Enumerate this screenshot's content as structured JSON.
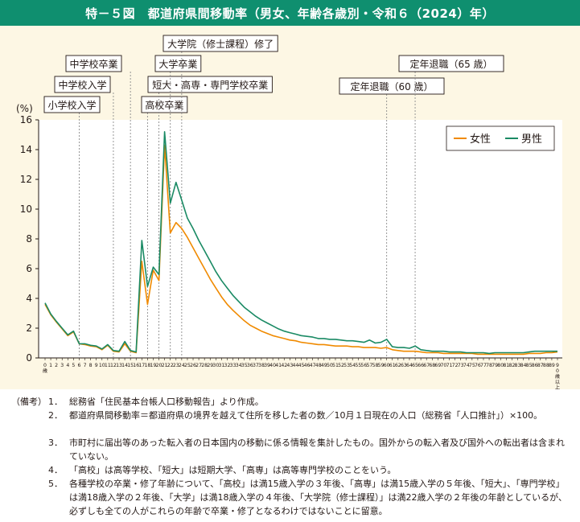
{
  "title": "特－５図　都道府県間移動率（男女、年齢各歳別・令和６（2024）年）",
  "colors": {
    "female": "#f08a00",
    "male": "#1a8a64",
    "title_bg": "#0f8f6f",
    "panel_bg": "#fdf7e4",
    "annotation_line": "#8c8c8c"
  },
  "chart_data": {
    "type": "line",
    "y_unit": "(%)",
    "ylim": [
      0,
      16
    ],
    "yticks": [
      0,
      2,
      4,
      6,
      8,
      10,
      12,
      14,
      16
    ],
    "x_first_age": 0,
    "x_tick_labels": [
      "0歳",
      "1",
      "2",
      "3",
      "4",
      "5",
      "6",
      "7",
      "8",
      "9",
      "10",
      "11",
      "12",
      "13",
      "14",
      "15",
      "16",
      "17",
      "18",
      "19",
      "20",
      "21",
      "22",
      "23",
      "24",
      "25",
      "26",
      "27",
      "28",
      "29",
      "30",
      "31",
      "32",
      "33",
      "34",
      "35",
      "36",
      "37",
      "38",
      "39",
      "40",
      "41",
      "42",
      "43",
      "44",
      "45",
      "46",
      "47",
      "48",
      "49",
      "50",
      "51",
      "52",
      "53",
      "54",
      "55",
      "56",
      "57",
      "58",
      "59",
      "60",
      "61",
      "62",
      "63",
      "64",
      "65",
      "66",
      "67",
      "68",
      "69",
      "70",
      "71",
      "72",
      "73",
      "74",
      "75",
      "76",
      "77",
      "78",
      "79",
      "80",
      "81",
      "82",
      "83",
      "84",
      "85",
      "86",
      "87",
      "88",
      "89",
      "90歳以上"
    ],
    "legend_position": "top-right",
    "series": [
      {
        "name": "女性",
        "values": [
          3.6,
          2.9,
          2.4,
          1.95,
          1.5,
          1.75,
          0.95,
          0.9,
          0.8,
          0.75,
          0.55,
          0.85,
          0.45,
          0.4,
          0.95,
          0.45,
          0.35,
          6.5,
          3.6,
          5.9,
          5.2,
          14.3,
          8.4,
          9.1,
          8.7,
          8.1,
          7.4,
          6.7,
          6.0,
          5.3,
          4.7,
          4.1,
          3.6,
          3.2,
          2.85,
          2.5,
          2.2,
          2.0,
          1.8,
          1.65,
          1.5,
          1.4,
          1.3,
          1.2,
          1.15,
          1.05,
          1.0,
          0.95,
          0.9,
          0.9,
          0.85,
          0.8,
          0.8,
          0.8,
          0.75,
          0.75,
          0.7,
          0.7,
          0.7,
          0.65,
          0.7,
          0.55,
          0.5,
          0.45,
          0.45,
          0.45,
          0.4,
          0.35,
          0.35,
          0.35,
          0.3,
          0.3,
          0.3,
          0.3,
          0.3,
          0.3,
          0.25,
          0.25,
          0.25,
          0.25,
          0.25,
          0.25,
          0.25,
          0.25,
          0.25,
          0.3,
          0.3,
          0.3,
          0.35,
          0.35,
          0.4
        ]
      },
      {
        "name": "男性",
        "values": [
          3.7,
          2.95,
          2.45,
          2.0,
          1.55,
          1.8,
          0.95,
          0.95,
          0.85,
          0.8,
          0.6,
          0.9,
          0.5,
          0.45,
          1.1,
          0.5,
          0.4,
          7.9,
          4.8,
          6.1,
          5.6,
          15.2,
          10.4,
          11.8,
          10.6,
          9.4,
          8.7,
          7.9,
          7.2,
          6.5,
          5.8,
          5.2,
          4.7,
          4.2,
          3.8,
          3.4,
          3.1,
          2.8,
          2.55,
          2.35,
          2.15,
          1.95,
          1.8,
          1.7,
          1.6,
          1.5,
          1.45,
          1.4,
          1.3,
          1.3,
          1.25,
          1.25,
          1.2,
          1.15,
          1.15,
          1.1,
          1.05,
          1.2,
          1.0,
          1.05,
          1.25,
          0.75,
          0.7,
          0.7,
          0.65,
          0.8,
          0.55,
          0.5,
          0.45,
          0.45,
          0.45,
          0.4,
          0.4,
          0.4,
          0.35,
          0.35,
          0.35,
          0.35,
          0.3,
          0.35,
          0.35,
          0.35,
          0.35,
          0.35,
          0.35,
          0.4,
          0.45,
          0.45,
          0.45,
          0.45,
          0.45
        ]
      }
    ],
    "annotations": [
      {
        "label": "小学校入学",
        "age": 6
      },
      {
        "label": "中学校入学",
        "age": 12
      },
      {
        "label": "中学校卒業",
        "age": 15
      },
      {
        "label": "高校卒業",
        "age": 18
      },
      {
        "label": "短大・高専・専門学校卒業",
        "age": 20
      },
      {
        "label": "大学卒業",
        "age": 22
      },
      {
        "label": "大学院（修士課程）修了",
        "age": 24
      },
      {
        "label": "定年退職（60 歳）",
        "age": 60
      },
      {
        "label": "定年退職（65 歳）",
        "age": 65
      }
    ]
  },
  "notes": {
    "header": "（備考）",
    "items": [
      {
        "num": "1．",
        "text": "総務省「住民基本台帳人口移動報告」より作成。"
      },
      {
        "num": "2．",
        "text": "都道府県間移動率＝都道府県の境界を越えて住所を移した者の数／10月１日現在の人口（総務省「人口推計」）×100。"
      },
      {
        "num": "3．",
        "text": "市町村に届出等のあった転入者の日本国内の移動に係る情報を集計したもの。国外からの転入者及び国外への転出者は含まれていない。"
      },
      {
        "num": "4．",
        "text": "「高校」は高等学校、「短大」は短期大学、「高専」は高等専門学校のことをいう。"
      },
      {
        "num": "5．",
        "text": "各種学校の卒業・修了年齢について、「高校」は満15歳入学の３年後、「高専」は満15歳入学の５年後、「短大」、「専門学校」は満18歳入学の２年後、「大学」は満18歳入学の４年後、「大学院（修士課程）」は満22歳入学の２年後の年齢としているが、必ずしも全ての人がこれらの年齢で卒業・修了となるわけではないことに留意。"
      }
    ]
  }
}
